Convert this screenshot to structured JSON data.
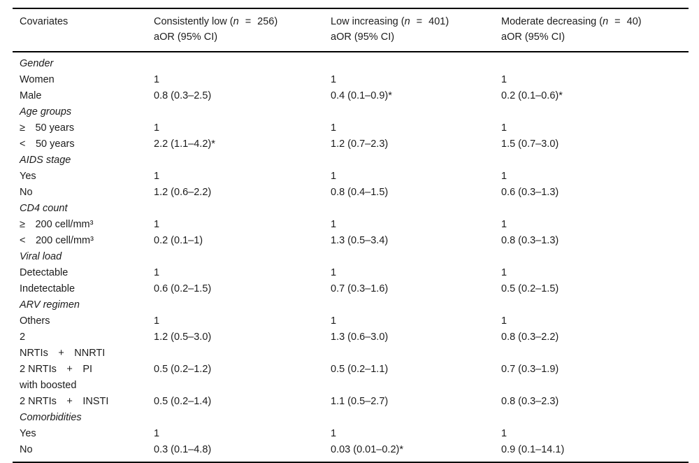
{
  "page": {
    "background": "#ffffff",
    "text_color": "#1c1c1c",
    "rule_color": "#000000"
  },
  "table": {
    "columns": [
      {
        "label": "Covariates"
      },
      {
        "line1_prefix": "Consistently low (",
        "n_italic": "n",
        "equals": "=",
        "count": "256)",
        "line2": "aOR (95% CI)"
      },
      {
        "line1_prefix": "Low increasing (",
        "n_italic": "n",
        "equals": "=",
        "count": "401)",
        "line2": "aOR (95% CI)"
      },
      {
        "line1_prefix": "Moderate decreasing (",
        "n_italic": "n",
        "equals": "=",
        "count": "40)",
        "line2": "aOR (95% CI)"
      }
    ],
    "rows": [
      {
        "type": "section",
        "label": "Gender"
      },
      {
        "type": "data",
        "label_lines": [
          "Women"
        ],
        "values": [
          "1",
          "1",
          "1"
        ]
      },
      {
        "type": "data",
        "label_lines": [
          "Male"
        ],
        "values": [
          "0.8 (0.3–2.5)",
          "0.4 (0.1–0.9)*",
          "0.2 (0.1–0.6)*"
        ]
      },
      {
        "type": "section",
        "label": "Age groups"
      },
      {
        "type": "data",
        "label_lines": [
          "≥ 50 years"
        ],
        "values": [
          "1",
          "1",
          "1"
        ]
      },
      {
        "type": "data",
        "label_lines": [
          "< 50 years"
        ],
        "values": [
          "2.2 (1.1–4.2)*",
          "1.2 (0.7–2.3)",
          "1.5 (0.7–3.0)"
        ]
      },
      {
        "type": "section",
        "label": "AIDS stage"
      },
      {
        "type": "data",
        "label_lines": [
          "Yes"
        ],
        "values": [
          "1",
          "1",
          "1"
        ]
      },
      {
        "type": "data",
        "label_lines": [
          "No"
        ],
        "values": [
          "1.2 (0.6–2.2)",
          "0.8 (0.4–1.5)",
          "0.6 (0.3–1.3)"
        ]
      },
      {
        "type": "section",
        "label": "CD4 count"
      },
      {
        "type": "data",
        "label_lines": [
          "≥ 200 cell/mm³"
        ],
        "values": [
          "1",
          "1",
          "1"
        ]
      },
      {
        "type": "data",
        "label_lines": [
          "< 200 cell/mm³"
        ],
        "values": [
          "0.2 (0.1–1)",
          "1.3 (0.5–3.4)",
          "0.8 (0.3–1.3)"
        ]
      },
      {
        "type": "section",
        "label": "Viral load"
      },
      {
        "type": "data",
        "label_lines": [
          "Detectable"
        ],
        "values": [
          "1",
          "1",
          "1"
        ]
      },
      {
        "type": "data",
        "label_lines": [
          "Indetectable"
        ],
        "values": [
          "0.6 (0.2–1.5)",
          "0.7 (0.3–1.6)",
          "0.5 (0.2–1.5)"
        ]
      },
      {
        "type": "section",
        "label": "ARV regimen"
      },
      {
        "type": "data",
        "label_lines": [
          "Others"
        ],
        "values": [
          "1",
          "1",
          "1"
        ]
      },
      {
        "type": "data",
        "label_lines": [
          "2",
          "NRTIs + NNRTI"
        ],
        "values": [
          "1.2 (0.5–3.0)",
          "1.3 (0.6–3.0)",
          "0.8 (0.3–2.2)"
        ]
      },
      {
        "type": "data",
        "label_lines": [
          "2 NRTIs + PI",
          "with boosted"
        ],
        "values": [
          "0.5 (0.2–1.2)",
          "0.5 (0.2–1.1)",
          "0.7 (0.3–1.9)"
        ]
      },
      {
        "type": "data",
        "label_lines": [
          "2 NRTIs + INSTI"
        ],
        "values": [
          "0.5 (0.2–1.4)",
          "1.1 (0.5–2.7)",
          "0.8 (0.3–2.3)"
        ]
      },
      {
        "type": "section",
        "label": "Comorbidities"
      },
      {
        "type": "data",
        "label_lines": [
          "Yes"
        ],
        "values": [
          "1",
          "1",
          "1"
        ]
      },
      {
        "type": "data",
        "label_lines": [
          "No"
        ],
        "values": [
          "0.3 (0.1–4.8)",
          "0.03 (0.01–0.2)*",
          "0.9 (0.1–14.1)"
        ]
      }
    ]
  }
}
